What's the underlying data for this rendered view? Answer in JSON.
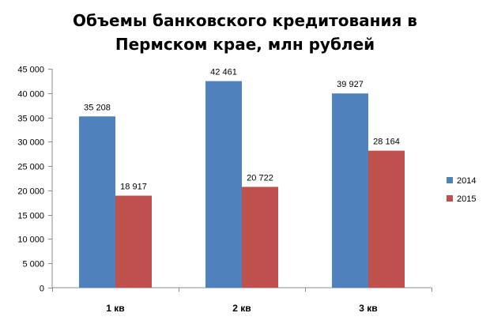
{
  "chart_data": {
    "type": "bar",
    "title_lines": [
      "Объемы банковского кредитования в",
      "Пермском крае, млн рублей"
    ],
    "categories": [
      "1 кв",
      "2 кв",
      "3 кв"
    ],
    "series": [
      {
        "name": "2014",
        "color": "#4f81bd",
        "values": [
          35208,
          42461,
          39927
        ],
        "labels": [
          "35 208",
          "42 461",
          "39 927"
        ]
      },
      {
        "name": "2015",
        "color": "#c0504d",
        "values": [
          18917,
          20722,
          28164
        ],
        "labels": [
          "18 917",
          "20 722",
          "28 164"
        ]
      }
    ],
    "ylim": [
      0,
      45000
    ],
    "y_ticks": [
      0,
      5000,
      10000,
      15000,
      20000,
      25000,
      30000,
      35000,
      40000,
      45000
    ],
    "y_tick_labels": [
      "0",
      "5 000",
      "10 000",
      "15 000",
      "20 000",
      "25 000",
      "30 000",
      "35 000",
      "40 000",
      "45 000"
    ],
    "grid": false,
    "legend_position": "right",
    "xlabel": "",
    "ylabel": ""
  }
}
